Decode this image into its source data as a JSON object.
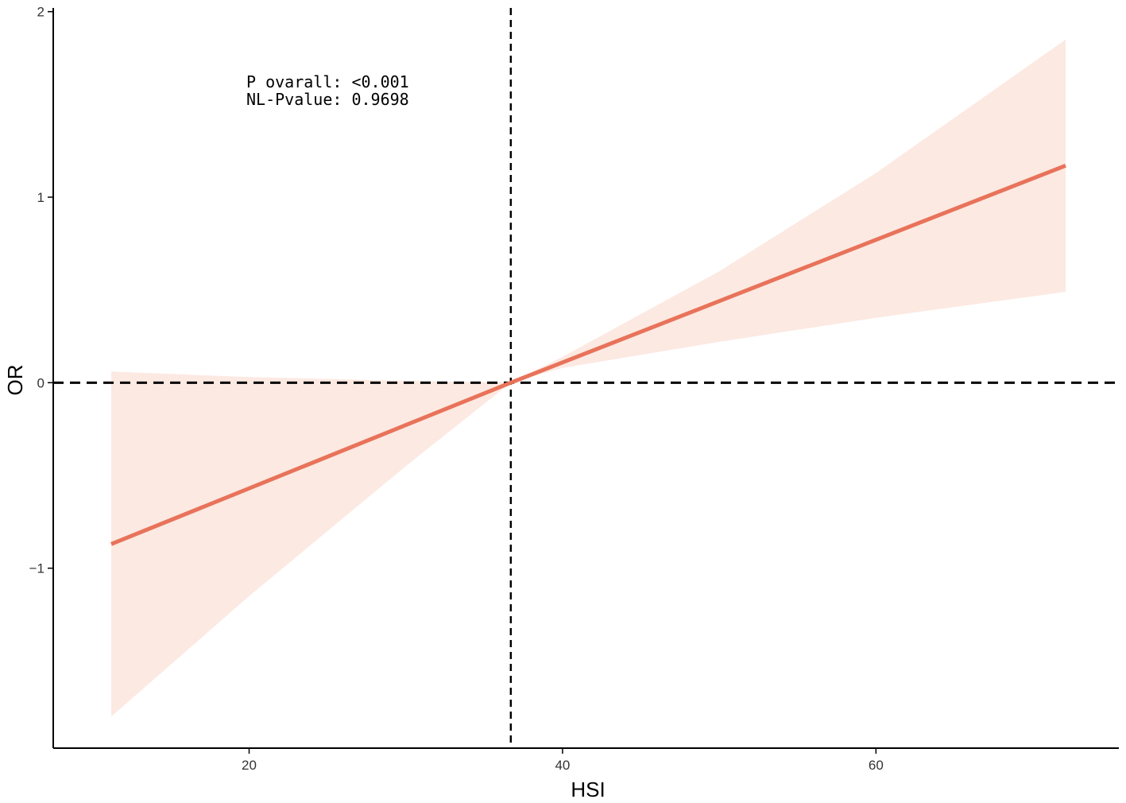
{
  "chart_data": {
    "type": "line",
    "xlabel": "HSI",
    "ylabel": "OR",
    "xlim": [
      7.5,
      75.5
    ],
    "ylim": [
      -1.97,
      2.02
    ],
    "x_ticks": [
      20,
      40,
      60
    ],
    "y_ticks": [
      -1,
      0,
      1,
      2
    ],
    "x_tick_labels": [
      "20",
      "40",
      "60"
    ],
    "y_tick_labels": [
      "−1",
      "0",
      "1",
      "2"
    ],
    "annotations": [
      "P ovarall: <0.001",
      "NL-Pvalue: 0.9698"
    ],
    "reference_lines": {
      "x": 36.7,
      "y": 0
    },
    "grid": false,
    "series": [
      {
        "x": [
          11.2,
          36.7,
          72.1
        ],
        "y": [
          -0.87,
          0.0,
          1.17
        ],
        "ci_x": [
          11.2,
          20,
          30,
          36.7,
          40,
          50,
          60,
          72.1
        ],
        "ci_lower": [
          -1.8,
          -1.15,
          -0.45,
          0.0,
          0.08,
          0.22,
          0.35,
          0.49
        ],
        "ci_upper": [
          0.06,
          0.03,
          0.01,
          0.0,
          0.14,
          0.6,
          1.13,
          1.85
        ]
      }
    ],
    "colors": {
      "line": "#E8735A",
      "band": "#FCE9E2",
      "axis": "#000000",
      "ref": "#000000"
    }
  }
}
